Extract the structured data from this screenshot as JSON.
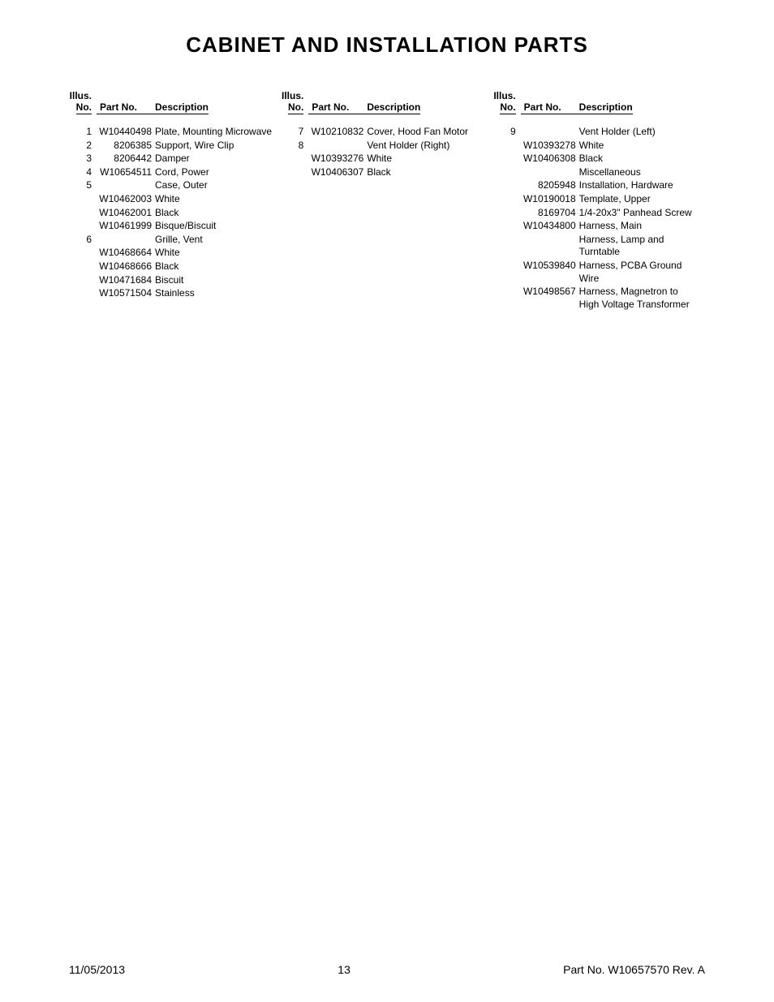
{
  "title": "CABINET AND INSTALLATION PARTS",
  "headers": {
    "illus1": "Illus.",
    "illus2": "No.",
    "partno": "Part No.",
    "desc": "Description"
  },
  "col1": [
    {
      "illus": "1",
      "partno": "W10440498",
      "desc": "Plate, Mounting Microwave"
    },
    {
      "illus": "2",
      "partno": "8206385",
      "desc": "Support, Wire Clip"
    },
    {
      "illus": "3",
      "partno": "8206442",
      "desc": "Damper"
    },
    {
      "illus": "4",
      "partno": "W10654511",
      "desc": "Cord, Power"
    },
    {
      "illus": "5",
      "partno": "",
      "desc": "Case, Outer"
    },
    {
      "illus": "",
      "partno": "W10462003",
      "desc": "White"
    },
    {
      "illus": "",
      "partno": "W10462001",
      "desc": "Black"
    },
    {
      "illus": "",
      "partno": "W10461999",
      "desc": "Bisque/Biscuit"
    },
    {
      "illus": "6",
      "partno": "",
      "desc": "Grille, Vent"
    },
    {
      "illus": "",
      "partno": "W10468664",
      "desc": "White"
    },
    {
      "illus": "",
      "partno": "W10468666",
      "desc": "Black"
    },
    {
      "illus": "",
      "partno": "W10471684",
      "desc": "Biscuit"
    },
    {
      "illus": "",
      "partno": "W10571504",
      "desc": "Stainless"
    }
  ],
  "col2": [
    {
      "illus": "7",
      "partno": "W10210832",
      "desc": "Cover, Hood Fan Motor"
    },
    {
      "illus": "8",
      "partno": "",
      "desc": "Vent Holder (Right)"
    },
    {
      "illus": "",
      "partno": "W10393276",
      "desc": "White"
    },
    {
      "illus": "",
      "partno": "W10406307",
      "desc": "Black"
    }
  ],
  "col3": [
    {
      "illus": "9",
      "partno": "",
      "desc": "Vent Holder (Left)"
    },
    {
      "illus": "",
      "partno": "W10393278",
      "desc": "White"
    },
    {
      "illus": "",
      "partno": "W10406308",
      "desc": "Black"
    },
    {
      "illus": "",
      "partno": "",
      "desc": "Miscellaneous"
    },
    {
      "illus": "",
      "partno": "8205948",
      "desc": "Installation, Hardware"
    },
    {
      "illus": "",
      "partno": "W10190018",
      "desc": "Template, Upper"
    },
    {
      "illus": "",
      "partno": "8169704",
      "desc": "1/4-20x3\" Panhead Screw"
    },
    {
      "illus": "",
      "partno": "W10434800",
      "desc": "Harness, Main"
    },
    {
      "illus": "",
      "partno": "",
      "desc": "Harness, Lamp and Turntable"
    },
    {
      "illus": "",
      "partno": "W10539840",
      "desc": "Harness, PCBA Ground Wire"
    },
    {
      "illus": "",
      "partno": "W10498567",
      "desc": "Harness, Magnetron to High Voltage Transformer"
    }
  ],
  "footer": {
    "date": "11/05/2013",
    "page": "13",
    "partinfo": "Part No. W10657570  Rev.  A"
  }
}
